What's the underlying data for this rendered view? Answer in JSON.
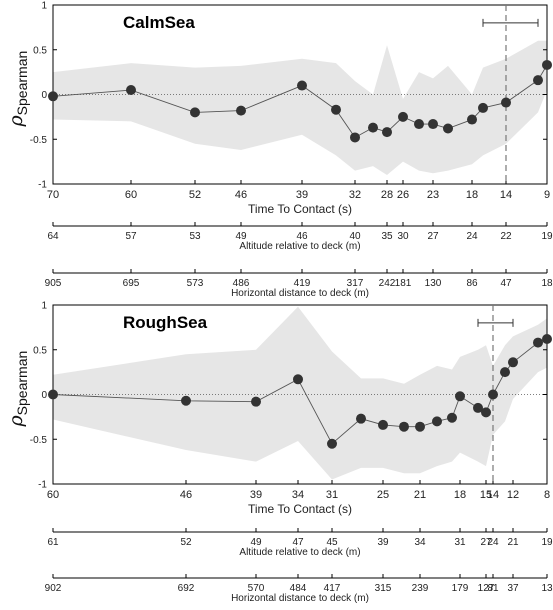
{
  "chart_data": [
    {
      "type": "line",
      "title": "CalmSea",
      "ylabel_main": "ρ",
      "ylabel_sub": "Spearman",
      "ylim": [
        -1,
        1
      ],
      "yticks": [
        "-1",
        "-0.5",
        "0",
        "0.5",
        "1"
      ],
      "grid": false,
      "zero_line": "dotted",
      "xlabel": "Time To Contact (s)",
      "xticks": [
        {
          "i": 0,
          "label": "70"
        },
        {
          "i": 1,
          "label": "60"
        },
        {
          "i": 2,
          "label": "52"
        },
        {
          "i": 3,
          "label": "46"
        },
        {
          "i": 4,
          "label": "39"
        },
        {
          "i": 6,
          "label": "32"
        },
        {
          "i": 8,
          "label": "28"
        },
        {
          "i": 9,
          "label": "26"
        },
        {
          "i": 11,
          "label": "23"
        },
        {
          "i": 13,
          "label": "18"
        },
        {
          "i": 15,
          "label": "14"
        },
        {
          "i": 17,
          "label": "9"
        }
      ],
      "x": [
        70,
        60,
        52,
        46,
        39,
        35,
        32,
        30,
        28,
        26,
        24.5,
        23,
        21.5,
        18,
        17,
        14,
        10,
        9
      ],
      "y": [
        -0.02,
        0.05,
        -0.2,
        -0.18,
        0.1,
        -0.17,
        -0.48,
        -0.37,
        -0.42,
        -0.25,
        -0.33,
        -0.33,
        -0.38,
        -0.28,
        -0.15,
        -0.09,
        0.16,
        0.33
      ],
      "band_upper": [
        0.25,
        0.35,
        0.3,
        0.32,
        0.4,
        0.35,
        0.15,
        0.0,
        0.55,
        -0.05,
        0.25,
        0.18,
        0.32,
        0.0,
        0.3,
        0.4,
        0.6,
        0.6
      ],
      "band_lower": [
        -0.28,
        -0.3,
        -0.55,
        -0.62,
        -0.45,
        -0.68,
        -0.85,
        -0.8,
        -0.9,
        -0.75,
        -0.85,
        -0.88,
        -0.85,
        -0.78,
        -0.68,
        -0.55,
        -0.2,
        0.05
      ],
      "vline": {
        "x": 14,
        "style": "dashed"
      },
      "errorbar": {
        "y": 0.8,
        "x_start": 17,
        "x_end": 10
      },
      "aux_axes": [
        {
          "label": "Altitude relative to deck (m)",
          "ticks": [
            {
              "i": 0,
              "label": "64"
            },
            {
              "i": 1,
              "label": "57"
            },
            {
              "i": 2,
              "label": "53"
            },
            {
              "i": 3,
              "label": "49"
            },
            {
              "i": 4,
              "label": "46"
            },
            {
              "i": 6,
              "label": "40"
            },
            {
              "i": 8,
              "label": "35"
            },
            {
              "i": 9,
              "label": "30"
            },
            {
              "i": 11,
              "label": "27"
            },
            {
              "i": 13,
              "label": "24"
            },
            {
              "i": 15,
              "label": "22"
            },
            {
              "i": 17,
              "label": "19"
            }
          ]
        },
        {
          "label": "Horizontal distance to deck (m)",
          "ticks": [
            {
              "i": 0,
              "label": "905"
            },
            {
              "i": 1,
              "label": "695"
            },
            {
              "i": 2,
              "label": "573"
            },
            {
              "i": 3,
              "label": "486"
            },
            {
              "i": 4,
              "label": "419"
            },
            {
              "i": 6,
              "label": "317"
            },
            {
              "i": 8,
              "label": "242"
            },
            {
              "i": 9,
              "label": "181"
            },
            {
              "i": 11,
              "label": "130"
            },
            {
              "i": 13,
              "label": "86"
            },
            {
              "i": 15,
              "label": "47"
            },
            {
              "i": 17,
              "label": "18"
            }
          ]
        }
      ]
    },
    {
      "type": "line",
      "title": "RoughSea",
      "ylabel_main": "ρ",
      "ylabel_sub": "Spearman",
      "ylim": [
        -1,
        1
      ],
      "yticks": [
        "-1",
        "-0.5",
        "0",
        "0.5",
        "1"
      ],
      "grid": false,
      "zero_line": "dotted",
      "xlabel": "Time To Contact (s)",
      "xticks": [
        {
          "i": 0,
          "label": "60"
        },
        {
          "i": 1,
          "label": "46"
        },
        {
          "i": 2,
          "label": "39"
        },
        {
          "i": 3,
          "label": "34"
        },
        {
          "i": 4,
          "label": "31"
        },
        {
          "i": 6,
          "label": "25"
        },
        {
          "i": 8,
          "label": "21"
        },
        {
          "i": 11,
          "label": "18"
        },
        {
          "i": 13,
          "label": "15"
        },
        {
          "i": 14,
          "label": "14"
        },
        {
          "i": 16,
          "label": "12"
        },
        {
          "i": 18,
          "label": "8"
        }
      ],
      "x": [
        60,
        46,
        39,
        34,
        31,
        27.5,
        25,
        22.5,
        21,
        19.5,
        18.5,
        18,
        16,
        15,
        14,
        13,
        12,
        9,
        8
      ],
      "y": [
        0.0,
        -0.07,
        -0.08,
        0.17,
        -0.55,
        -0.27,
        -0.34,
        -0.36,
        -0.36,
        -0.3,
        -0.26,
        -0.02,
        -0.15,
        -0.2,
        0.0,
        0.25,
        0.36,
        0.58,
        0.62
      ],
      "band_upper": [
        0.22,
        0.45,
        0.5,
        0.98,
        0.48,
        0.18,
        0.18,
        0.12,
        0.22,
        0.32,
        0.28,
        0.42,
        0.5,
        0.55,
        0.32,
        0.55,
        0.65,
        0.78,
        0.85
      ],
      "band_lower": [
        -0.28,
        -0.62,
        -0.75,
        -0.52,
        -0.95,
        -0.82,
        -0.82,
        -0.88,
        -0.88,
        -0.8,
        -0.75,
        -0.65,
        -0.75,
        -0.8,
        -0.45,
        -0.3,
        -0.05,
        0.25,
        0.3
      ],
      "vline": {
        "x": 14,
        "style": "dashed"
      },
      "errorbar": {
        "y": 0.8,
        "x_start": 16,
        "x_end": 12
      },
      "aux_axes": [
        {
          "label": "Altitude relative to deck (m)",
          "ticks": [
            {
              "i": 0,
              "label": "61"
            },
            {
              "i": 1,
              "label": "52"
            },
            {
              "i": 2,
              "label": "49"
            },
            {
              "i": 3,
              "label": "47"
            },
            {
              "i": 4,
              "label": "45"
            },
            {
              "i": 6,
              "label": "39"
            },
            {
              "i": 8,
              "label": "34"
            },
            {
              "i": 11,
              "label": "31"
            },
            {
              "i": 13,
              "label": "27"
            },
            {
              "i": 14,
              "label": "24"
            },
            {
              "i": 16,
              "label": "21"
            },
            {
              "i": 18,
              "label": "19"
            }
          ]
        },
        {
          "label": "Horizontal distance to deck (m)",
          "ticks": [
            {
              "i": 0,
              "label": "902"
            },
            {
              "i": 1,
              "label": "692"
            },
            {
              "i": 2,
              "label": "570"
            },
            {
              "i": 3,
              "label": "484"
            },
            {
              "i": 4,
              "label": "417"
            },
            {
              "i": 6,
              "label": "315"
            },
            {
              "i": 8,
              "label": "239"
            },
            {
              "i": 11,
              "label": "179"
            },
            {
              "i": 13,
              "label": "127"
            },
            {
              "i": 14,
              "label": "81"
            },
            {
              "i": 16,
              "label": "37"
            },
            {
              "i": 18,
              "label": "13"
            }
          ]
        }
      ]
    }
  ]
}
